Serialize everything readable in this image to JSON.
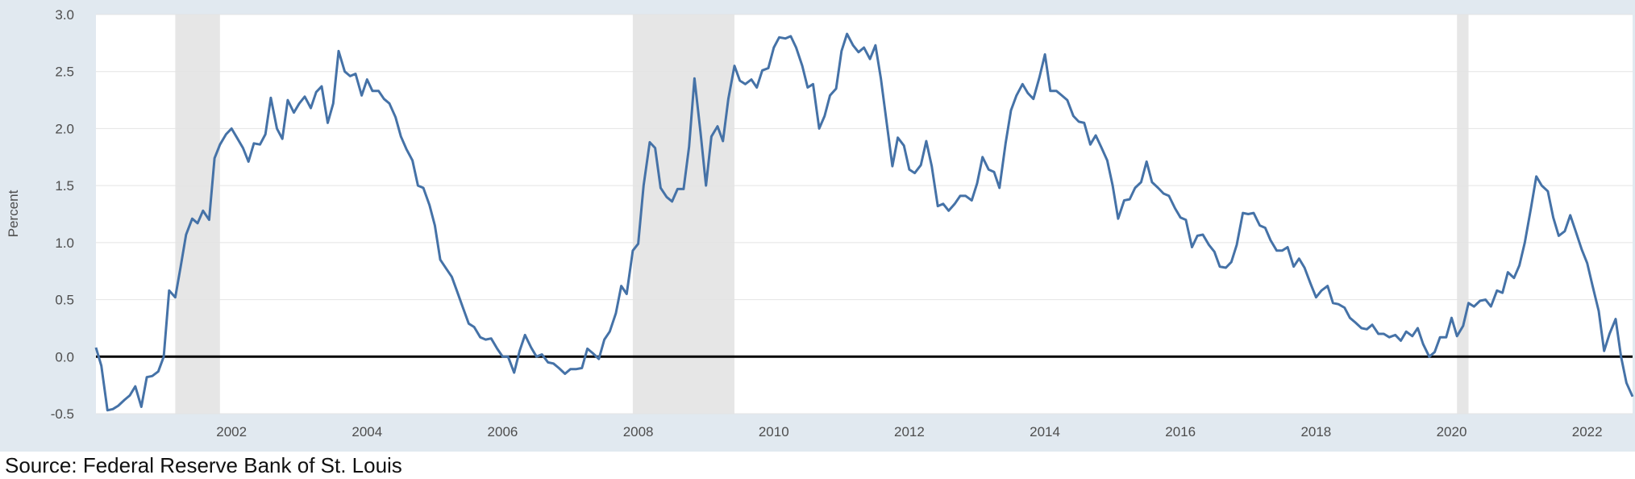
{
  "chart_data": {
    "type": "line",
    "title": "",
    "xlabel": "",
    "ylabel": "Percent",
    "xlim": [
      2000.0,
      2022.67
    ],
    "ylim": [
      -0.5,
      3.0
    ],
    "yticks": [
      -0.5,
      0.0,
      0.5,
      1.0,
      1.5,
      2.0,
      2.5,
      3.0
    ],
    "ytick_labels": [
      "-0.5",
      "0.0",
      "0.5",
      "1.0",
      "1.5",
      "2.0",
      "2.5",
      "3.0"
    ],
    "xticks": [
      2002,
      2004,
      2006,
      2008,
      2010,
      2012,
      2014,
      2016,
      2018,
      2020,
      2022
    ],
    "xtick_labels": [
      "2002",
      "2004",
      "2006",
      "2008",
      "2010",
      "2012",
      "2014",
      "2016",
      "2018",
      "2020",
      "2022"
    ],
    "grid": true,
    "recessions": [
      [
        2001.17,
        2001.83
      ],
      [
        2007.92,
        2009.42
      ],
      [
        2020.08,
        2020.25
      ]
    ],
    "zero_line": 0.0,
    "line_color": "#4572a7",
    "series": [
      {
        "points": [
          [
            2000.0,
            0.08
          ],
          [
            2000.08,
            -0.08
          ],
          [
            2000.17,
            -0.47
          ],
          [
            2000.25,
            -0.46
          ],
          [
            2000.33,
            -0.43
          ],
          [
            2000.42,
            -0.38
          ],
          [
            2000.5,
            -0.34
          ],
          [
            2000.58,
            -0.26
          ],
          [
            2000.67,
            -0.44
          ],
          [
            2000.75,
            -0.18
          ],
          [
            2000.83,
            -0.17
          ],
          [
            2000.92,
            -0.13
          ],
          [
            2001.0,
            0.0
          ],
          [
            2001.08,
            0.58
          ],
          [
            2001.17,
            0.52
          ],
          [
            2001.25,
            0.79
          ],
          [
            2001.33,
            1.07
          ],
          [
            2001.42,
            1.21
          ],
          [
            2001.5,
            1.17
          ],
          [
            2001.58,
            1.28
          ],
          [
            2001.67,
            1.2
          ],
          [
            2001.75,
            1.74
          ],
          [
            2001.83,
            1.86
          ],
          [
            2001.92,
            1.95
          ],
          [
            2002.0,
            2.0
          ],
          [
            2002.08,
            1.92
          ],
          [
            2002.17,
            1.83
          ],
          [
            2002.25,
            1.71
          ],
          [
            2002.33,
            1.87
          ],
          [
            2002.42,
            1.86
          ],
          [
            2002.5,
            1.95
          ],
          [
            2002.58,
            2.27
          ],
          [
            2002.67,
            2.0
          ],
          [
            2002.75,
            1.91
          ],
          [
            2002.83,
            2.25
          ],
          [
            2002.92,
            2.14
          ],
          [
            2003.0,
            2.22
          ],
          [
            2003.08,
            2.28
          ],
          [
            2003.17,
            2.18
          ],
          [
            2003.25,
            2.32
          ],
          [
            2003.33,
            2.37
          ],
          [
            2003.42,
            2.05
          ],
          [
            2003.5,
            2.22
          ],
          [
            2003.58,
            2.68
          ],
          [
            2003.67,
            2.5
          ],
          [
            2003.75,
            2.46
          ],
          [
            2003.83,
            2.48
          ],
          [
            2003.92,
            2.29
          ],
          [
            2004.0,
            2.43
          ],
          [
            2004.08,
            2.33
          ],
          [
            2004.17,
            2.33
          ],
          [
            2004.25,
            2.26
          ],
          [
            2004.33,
            2.22
          ],
          [
            2004.42,
            2.1
          ],
          [
            2004.5,
            1.93
          ],
          [
            2004.58,
            1.82
          ],
          [
            2004.67,
            1.72
          ],
          [
            2004.75,
            1.5
          ],
          [
            2004.83,
            1.48
          ],
          [
            2004.92,
            1.33
          ],
          [
            2005.0,
            1.15
          ],
          [
            2005.08,
            0.85
          ],
          [
            2005.17,
            0.77
          ],
          [
            2005.25,
            0.7
          ],
          [
            2005.33,
            0.57
          ],
          [
            2005.42,
            0.42
          ],
          [
            2005.5,
            0.29
          ],
          [
            2005.58,
            0.26
          ],
          [
            2005.67,
            0.17
          ],
          [
            2005.75,
            0.15
          ],
          [
            2005.83,
            0.16
          ],
          [
            2005.92,
            0.07
          ],
          [
            2006.0,
            0.0
          ],
          [
            2006.08,
            0.0
          ],
          [
            2006.17,
            -0.14
          ],
          [
            2006.25,
            0.05
          ],
          [
            2006.33,
            0.19
          ],
          [
            2006.42,
            0.08
          ],
          [
            2006.5,
            0.0
          ],
          [
            2006.58,
            0.02
          ],
          [
            2006.67,
            -0.05
          ],
          [
            2006.75,
            -0.06
          ],
          [
            2006.83,
            -0.1
          ],
          [
            2006.92,
            -0.15
          ],
          [
            2007.0,
            -0.11
          ],
          [
            2007.08,
            -0.11
          ],
          [
            2007.17,
            -0.1
          ],
          [
            2007.25,
            0.07
          ],
          [
            2007.33,
            0.03
          ],
          [
            2007.42,
            -0.02
          ],
          [
            2007.5,
            0.15
          ],
          [
            2007.58,
            0.22
          ],
          [
            2007.67,
            0.38
          ],
          [
            2007.75,
            0.62
          ],
          [
            2007.83,
            0.55
          ],
          [
            2007.92,
            0.93
          ],
          [
            2008.0,
            0.99
          ],
          [
            2008.08,
            1.5
          ],
          [
            2008.17,
            1.88
          ],
          [
            2008.25,
            1.83
          ],
          [
            2008.33,
            1.48
          ],
          [
            2008.42,
            1.4
          ],
          [
            2008.5,
            1.36
          ],
          [
            2008.58,
            1.47
          ],
          [
            2008.67,
            1.47
          ],
          [
            2008.75,
            1.84
          ],
          [
            2008.83,
            2.44
          ],
          [
            2008.92,
            1.96
          ],
          [
            2009.0,
            1.5
          ],
          [
            2009.08,
            1.93
          ],
          [
            2009.17,
            2.02
          ],
          [
            2009.25,
            1.89
          ],
          [
            2009.33,
            2.26
          ],
          [
            2009.42,
            2.55
          ],
          [
            2009.5,
            2.42
          ],
          [
            2009.58,
            2.39
          ],
          [
            2009.67,
            2.43
          ],
          [
            2009.75,
            2.36
          ],
          [
            2009.83,
            2.51
          ],
          [
            2009.92,
            2.53
          ],
          [
            2010.0,
            2.71
          ],
          [
            2010.08,
            2.8
          ],
          [
            2010.17,
            2.79
          ],
          [
            2010.25,
            2.81
          ],
          [
            2010.33,
            2.71
          ],
          [
            2010.42,
            2.55
          ],
          [
            2010.5,
            2.36
          ],
          [
            2010.58,
            2.39
          ],
          [
            2010.67,
            2.0
          ],
          [
            2010.75,
            2.11
          ],
          [
            2010.83,
            2.29
          ],
          [
            2010.92,
            2.35
          ],
          [
            2011.0,
            2.68
          ],
          [
            2011.08,
            2.83
          ],
          [
            2011.17,
            2.73
          ],
          [
            2011.25,
            2.67
          ],
          [
            2011.33,
            2.71
          ],
          [
            2011.42,
            2.61
          ],
          [
            2011.5,
            2.73
          ],
          [
            2011.58,
            2.44
          ],
          [
            2011.67,
            2.03
          ],
          [
            2011.75,
            1.67
          ],
          [
            2011.83,
            1.92
          ],
          [
            2011.92,
            1.85
          ],
          [
            2012.0,
            1.64
          ],
          [
            2012.08,
            1.61
          ],
          [
            2012.17,
            1.68
          ],
          [
            2012.25,
            1.89
          ],
          [
            2012.33,
            1.67
          ],
          [
            2012.42,
            1.32
          ],
          [
            2012.5,
            1.34
          ],
          [
            2012.58,
            1.28
          ],
          [
            2012.67,
            1.34
          ],
          [
            2012.75,
            1.41
          ],
          [
            2012.83,
            1.41
          ],
          [
            2012.92,
            1.37
          ],
          [
            2013.0,
            1.52
          ],
          [
            2013.08,
            1.75
          ],
          [
            2013.17,
            1.64
          ],
          [
            2013.25,
            1.62
          ],
          [
            2013.33,
            1.48
          ],
          [
            2013.42,
            1.87
          ],
          [
            2013.5,
            2.16
          ],
          [
            2013.58,
            2.29
          ],
          [
            2013.67,
            2.39
          ],
          [
            2013.75,
            2.31
          ],
          [
            2013.83,
            2.26
          ],
          [
            2013.92,
            2.45
          ],
          [
            2014.0,
            2.65
          ],
          [
            2014.08,
            2.33
          ],
          [
            2014.17,
            2.33
          ],
          [
            2014.25,
            2.29
          ],
          [
            2014.33,
            2.25
          ],
          [
            2014.42,
            2.11
          ],
          [
            2014.5,
            2.06
          ],
          [
            2014.58,
            2.05
          ],
          [
            2014.67,
            1.86
          ],
          [
            2014.75,
            1.94
          ],
          [
            2014.83,
            1.84
          ],
          [
            2014.92,
            1.72
          ],
          [
            2015.0,
            1.5
          ],
          [
            2015.08,
            1.21
          ],
          [
            2015.17,
            1.37
          ],
          [
            2015.25,
            1.38
          ],
          [
            2015.33,
            1.48
          ],
          [
            2015.42,
            1.53
          ],
          [
            2015.5,
            1.71
          ],
          [
            2015.58,
            1.53
          ],
          [
            2015.67,
            1.48
          ],
          [
            2015.75,
            1.43
          ],
          [
            2015.83,
            1.41
          ],
          [
            2015.92,
            1.3
          ],
          [
            2016.0,
            1.22
          ],
          [
            2016.08,
            1.2
          ],
          [
            2016.17,
            0.96
          ],
          [
            2016.25,
            1.06
          ],
          [
            2016.33,
            1.07
          ],
          [
            2016.42,
            0.98
          ],
          [
            2016.5,
            0.92
          ],
          [
            2016.58,
            0.79
          ],
          [
            2016.67,
            0.78
          ],
          [
            2016.75,
            0.83
          ],
          [
            2016.83,
            0.98
          ],
          [
            2016.92,
            1.26
          ],
          [
            2017.0,
            1.25
          ],
          [
            2017.08,
            1.26
          ],
          [
            2017.17,
            1.15
          ],
          [
            2017.25,
            1.13
          ],
          [
            2017.33,
            1.02
          ],
          [
            2017.42,
            0.93
          ],
          [
            2017.5,
            0.93
          ],
          [
            2017.58,
            0.96
          ],
          [
            2017.67,
            0.79
          ],
          [
            2017.75,
            0.86
          ],
          [
            2017.83,
            0.78
          ],
          [
            2017.92,
            0.64
          ],
          [
            2018.0,
            0.52
          ],
          [
            2018.08,
            0.58
          ],
          [
            2018.17,
            0.62
          ],
          [
            2018.25,
            0.47
          ],
          [
            2018.33,
            0.46
          ],
          [
            2018.42,
            0.43
          ],
          [
            2018.5,
            0.34
          ],
          [
            2018.58,
            0.3
          ],
          [
            2018.67,
            0.25
          ],
          [
            2018.75,
            0.24
          ],
          [
            2018.83,
            0.28
          ],
          [
            2018.92,
            0.2
          ],
          [
            2019.0,
            0.2
          ],
          [
            2019.08,
            0.17
          ],
          [
            2019.17,
            0.19
          ],
          [
            2019.25,
            0.14
          ],
          [
            2019.33,
            0.22
          ],
          [
            2019.42,
            0.18
          ],
          [
            2019.5,
            0.25
          ],
          [
            2019.58,
            0.11
          ],
          [
            2019.67,
            0.0
          ],
          [
            2019.75,
            0.04
          ],
          [
            2019.83,
            0.17
          ],
          [
            2019.92,
            0.17
          ],
          [
            2020.0,
            0.34
          ],
          [
            2020.08,
            0.18
          ],
          [
            2020.17,
            0.27
          ],
          [
            2020.25,
            0.47
          ],
          [
            2020.33,
            0.44
          ],
          [
            2020.42,
            0.49
          ],
          [
            2020.5,
            0.5
          ],
          [
            2020.58,
            0.44
          ],
          [
            2020.67,
            0.58
          ],
          [
            2020.75,
            0.56
          ],
          [
            2020.83,
            0.74
          ],
          [
            2020.92,
            0.69
          ],
          [
            2021.0,
            0.8
          ],
          [
            2021.08,
            1.0
          ],
          [
            2021.17,
            1.3
          ],
          [
            2021.25,
            1.58
          ],
          [
            2021.33,
            1.5
          ],
          [
            2021.42,
            1.45
          ],
          [
            2021.5,
            1.22
          ],
          [
            2021.58,
            1.06
          ],
          [
            2021.67,
            1.1
          ],
          [
            2021.75,
            1.24
          ],
          [
            2021.83,
            1.1
          ],
          [
            2021.92,
            0.94
          ],
          [
            2022.0,
            0.82
          ],
          [
            2022.08,
            0.62
          ],
          [
            2022.17,
            0.4
          ],
          [
            2022.25,
            0.05
          ],
          [
            2022.33,
            0.2
          ],
          [
            2022.42,
            0.33
          ],
          [
            2022.5,
            0.0
          ],
          [
            2022.58,
            -0.23
          ],
          [
            2022.67,
            -0.35
          ]
        ]
      }
    ]
  },
  "source": "Source: Federal Reserve Bank of St. Louis"
}
